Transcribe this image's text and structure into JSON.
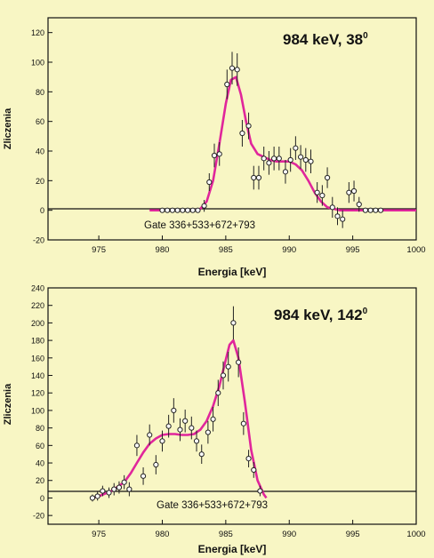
{
  "chart_data": [
    {
      "type": "scatter",
      "title": "984 keV, 38",
      "title_superscript": "0",
      "annotation": "Gate 336+533+672+793",
      "xlabel": "Energia [keV]",
      "ylabel": "Zliczenia",
      "xlim": [
        971,
        1000
      ],
      "ylim": [
        -20,
        130
      ],
      "xticks": [
        975,
        980,
        985,
        990,
        995,
        1000
      ],
      "yticks": [
        -20,
        0,
        20,
        40,
        60,
        80,
        100,
        120
      ],
      "grid": false,
      "fit_color": "#e0269b",
      "points": [
        {
          "x": 980.0,
          "y": 0,
          "err": 0
        },
        {
          "x": 980.4,
          "y": 0,
          "err": 0
        },
        {
          "x": 980.8,
          "y": 0,
          "err": 0
        },
        {
          "x": 981.2,
          "y": 0,
          "err": 0
        },
        {
          "x": 981.6,
          "y": 0,
          "err": 0
        },
        {
          "x": 982.0,
          "y": 0,
          "err": 0
        },
        {
          "x": 982.4,
          "y": 0,
          "err": 0
        },
        {
          "x": 982.8,
          "y": 0,
          "err": 0
        },
        {
          "x": 983.3,
          "y": 3,
          "err": 4
        },
        {
          "x": 983.7,
          "y": 19,
          "err": 6
        },
        {
          "x": 984.1,
          "y": 37,
          "err": 8
        },
        {
          "x": 984.5,
          "y": 38,
          "err": 8
        },
        {
          "x": 985.1,
          "y": 85,
          "err": 10
        },
        {
          "x": 985.5,
          "y": 96,
          "err": 11
        },
        {
          "x": 985.9,
          "y": 95,
          "err": 11
        },
        {
          "x": 986.3,
          "y": 52,
          "err": 9
        },
        {
          "x": 986.8,
          "y": 57,
          "err": 9
        },
        {
          "x": 987.2,
          "y": 22,
          "err": 8
        },
        {
          "x": 987.6,
          "y": 22,
          "err": 8
        },
        {
          "x": 988.0,
          "y": 35,
          "err": 8
        },
        {
          "x": 988.4,
          "y": 32,
          "err": 8
        },
        {
          "x": 988.8,
          "y": 35,
          "err": 8
        },
        {
          "x": 989.2,
          "y": 35,
          "err": 8
        },
        {
          "x": 989.7,
          "y": 26,
          "err": 8
        },
        {
          "x": 990.1,
          "y": 34,
          "err": 8
        },
        {
          "x": 990.5,
          "y": 42,
          "err": 8
        },
        {
          "x": 990.9,
          "y": 36,
          "err": 8
        },
        {
          "x": 991.3,
          "y": 34,
          "err": 8
        },
        {
          "x": 991.7,
          "y": 33,
          "err": 8
        },
        {
          "x": 992.2,
          "y": 12,
          "err": 7
        },
        {
          "x": 992.6,
          "y": 10,
          "err": 7
        },
        {
          "x": 993.0,
          "y": 22,
          "err": 7
        },
        {
          "x": 993.4,
          "y": 2,
          "err": 7
        },
        {
          "x": 993.8,
          "y": -4,
          "err": 6
        },
        {
          "x": 994.2,
          "y": -6,
          "err": 6
        },
        {
          "x": 994.7,
          "y": 12,
          "err": 7
        },
        {
          "x": 995.1,
          "y": 13,
          "err": 7
        },
        {
          "x": 995.5,
          "y": 4,
          "err": 5
        },
        {
          "x": 996.0,
          "y": 0,
          "err": 0
        },
        {
          "x": 996.4,
          "y": 0,
          "err": 0
        },
        {
          "x": 996.8,
          "y": 0,
          "err": 0
        },
        {
          "x": 997.2,
          "y": 0,
          "err": 0
        }
      ],
      "fit": {
        "x": [
          979,
          981,
          982.5,
          983,
          983.5,
          984,
          984.5,
          985,
          985.4,
          985.8,
          986.2,
          986.6,
          987,
          987.5,
          988,
          988.5,
          989,
          989.5,
          990,
          990.5,
          991,
          991.5,
          992,
          992.5,
          993,
          993.5,
          994,
          995,
          997,
          1000
        ],
        "y": [
          0,
          0,
          0,
          1,
          6,
          20,
          45,
          72,
          88,
          90,
          78,
          60,
          45,
          38,
          36,
          34,
          33,
          33,
          33,
          31,
          27,
          20,
          12,
          6,
          2,
          1,
          0,
          0,
          0,
          0
        ]
      }
    },
    {
      "type": "scatter",
      "title": "984 keV, 142",
      "title_superscript": "0",
      "annotation": "Gate 336+533+672+793",
      "xlabel": "Energia [keV]",
      "ylabel": "Zliczenia",
      "xlim": [
        971,
        1000
      ],
      "ylim": [
        -30,
        240
      ],
      "xticks": [
        975,
        980,
        985,
        990,
        995,
        1000
      ],
      "xtick_labels": [
        "975",
        "980",
        "985",
        "990",
        "995",
        "1000"
      ],
      "yticks": [
        -20,
        0,
        20,
        40,
        60,
        80,
        100,
        120,
        140,
        160,
        180,
        200,
        220,
        240
      ],
      "grid": false,
      "fit_color": "#e0269b",
      "points": [
        {
          "x": 974.5,
          "y": 0,
          "err": 4
        },
        {
          "x": 974.9,
          "y": 2,
          "err": 5
        },
        {
          "x": 975.3,
          "y": 8,
          "err": 6
        },
        {
          "x": 975.8,
          "y": 6,
          "err": 6
        },
        {
          "x": 976.2,
          "y": 10,
          "err": 7
        },
        {
          "x": 976.6,
          "y": 12,
          "err": 7
        },
        {
          "x": 977.0,
          "y": 18,
          "err": 8
        },
        {
          "x": 977.4,
          "y": 10,
          "err": 8
        },
        {
          "x": 978.0,
          "y": 60,
          "err": 12
        },
        {
          "x": 978.5,
          "y": 25,
          "err": 10
        },
        {
          "x": 979.0,
          "y": 72,
          "err": 12
        },
        {
          "x": 979.5,
          "y": 38,
          "err": 11
        },
        {
          "x": 980.0,
          "y": 65,
          "err": 12
        },
        {
          "x": 980.5,
          "y": 82,
          "err": 13
        },
        {
          "x": 980.9,
          "y": 100,
          "err": 14
        },
        {
          "x": 981.4,
          "y": 78,
          "err": 13
        },
        {
          "x": 981.8,
          "y": 88,
          "err": 13
        },
        {
          "x": 982.3,
          "y": 80,
          "err": 13
        },
        {
          "x": 982.7,
          "y": 65,
          "err": 12
        },
        {
          "x": 983.1,
          "y": 50,
          "err": 11
        },
        {
          "x": 983.6,
          "y": 75,
          "err": 13
        },
        {
          "x": 984.0,
          "y": 90,
          "err": 14
        },
        {
          "x": 984.4,
          "y": 120,
          "err": 15
        },
        {
          "x": 984.8,
          "y": 140,
          "err": 16
        },
        {
          "x": 985.2,
          "y": 150,
          "err": 17
        },
        {
          "x": 985.6,
          "y": 200,
          "err": 19
        },
        {
          "x": 986.0,
          "y": 155,
          "err": 17
        },
        {
          "x": 986.4,
          "y": 85,
          "err": 13
        },
        {
          "x": 986.8,
          "y": 45,
          "err": 10
        },
        {
          "x": 987.2,
          "y": 32,
          "err": 9
        },
        {
          "x": 987.7,
          "y": 8,
          "err": 6
        }
      ],
      "fit": {
        "x": [
          974.5,
          975,
          976,
          977,
          977.5,
          978,
          978.5,
          979,
          979.5,
          980,
          980.5,
          981,
          981.5,
          982,
          982.5,
          983,
          983.5,
          984,
          984.5,
          985,
          985.3,
          985.6,
          986,
          986.5,
          987,
          987.5,
          988,
          988.2
        ],
        "y": [
          0,
          2,
          8,
          18,
          28,
          40,
          52,
          62,
          68,
          72,
          73,
          73,
          72,
          72,
          73,
          78,
          88,
          105,
          128,
          158,
          175,
          180,
          160,
          110,
          55,
          20,
          4,
          0
        ]
      }
    }
  ]
}
